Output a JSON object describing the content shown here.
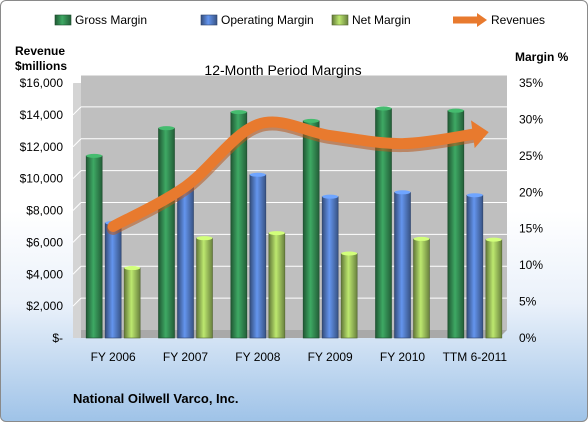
{
  "chart_data": {
    "type": "bar",
    "title": "12-Month Period Margins",
    "categories": [
      "FY 2006",
      "FY 2007",
      "FY 2008",
      "FY 2009",
      "FY 2010",
      "TTM 6-2011"
    ],
    "series": [
      {
        "name": "Gross Margin",
        "axis": "right",
        "values": [
          25.0,
          28.8,
          31.0,
          29.8,
          31.5,
          31.2
        ],
        "color": "#2e7d4a"
      },
      {
        "name": "Operating Margin",
        "axis": "right",
        "values": [
          15.8,
          20.8,
          22.4,
          19.4,
          20.0,
          19.6
        ],
        "color": "#4a6eb0"
      },
      {
        "name": "Net Margin",
        "axis": "right",
        "values": [
          9.6,
          13.7,
          14.4,
          11.6,
          13.6,
          13.5
        ],
        "color": "#8cac52"
      },
      {
        "name": "Revenues",
        "axis": "left",
        "type": "line",
        "values": [
          7000,
          9500,
          13400,
          12700,
          12200,
          12800
        ],
        "color": "#e87a2e"
      }
    ],
    "ylabel_left": "Revenue\n$millions",
    "ylabel_right": "Margin %",
    "ylim_left": [
      0,
      16000
    ],
    "ylim_right": [
      0,
      35
    ],
    "yticks_left": [
      "$-",
      "$2,000",
      "$4,000",
      "$6,000",
      "$8,000",
      "$10,000",
      "$12,000",
      "$14,000",
      "$16,000"
    ],
    "yticks_right": [
      "0%",
      "5%",
      "10%",
      "15%",
      "20%",
      "25%",
      "30%",
      "35%"
    ],
    "grid": true,
    "legend_position": "top"
  },
  "footer": {
    "company": "National Oilwell Varco, Inc."
  },
  "colors": {
    "plot_background": "#bfbfbf",
    "gridline": "#ffffff"
  }
}
